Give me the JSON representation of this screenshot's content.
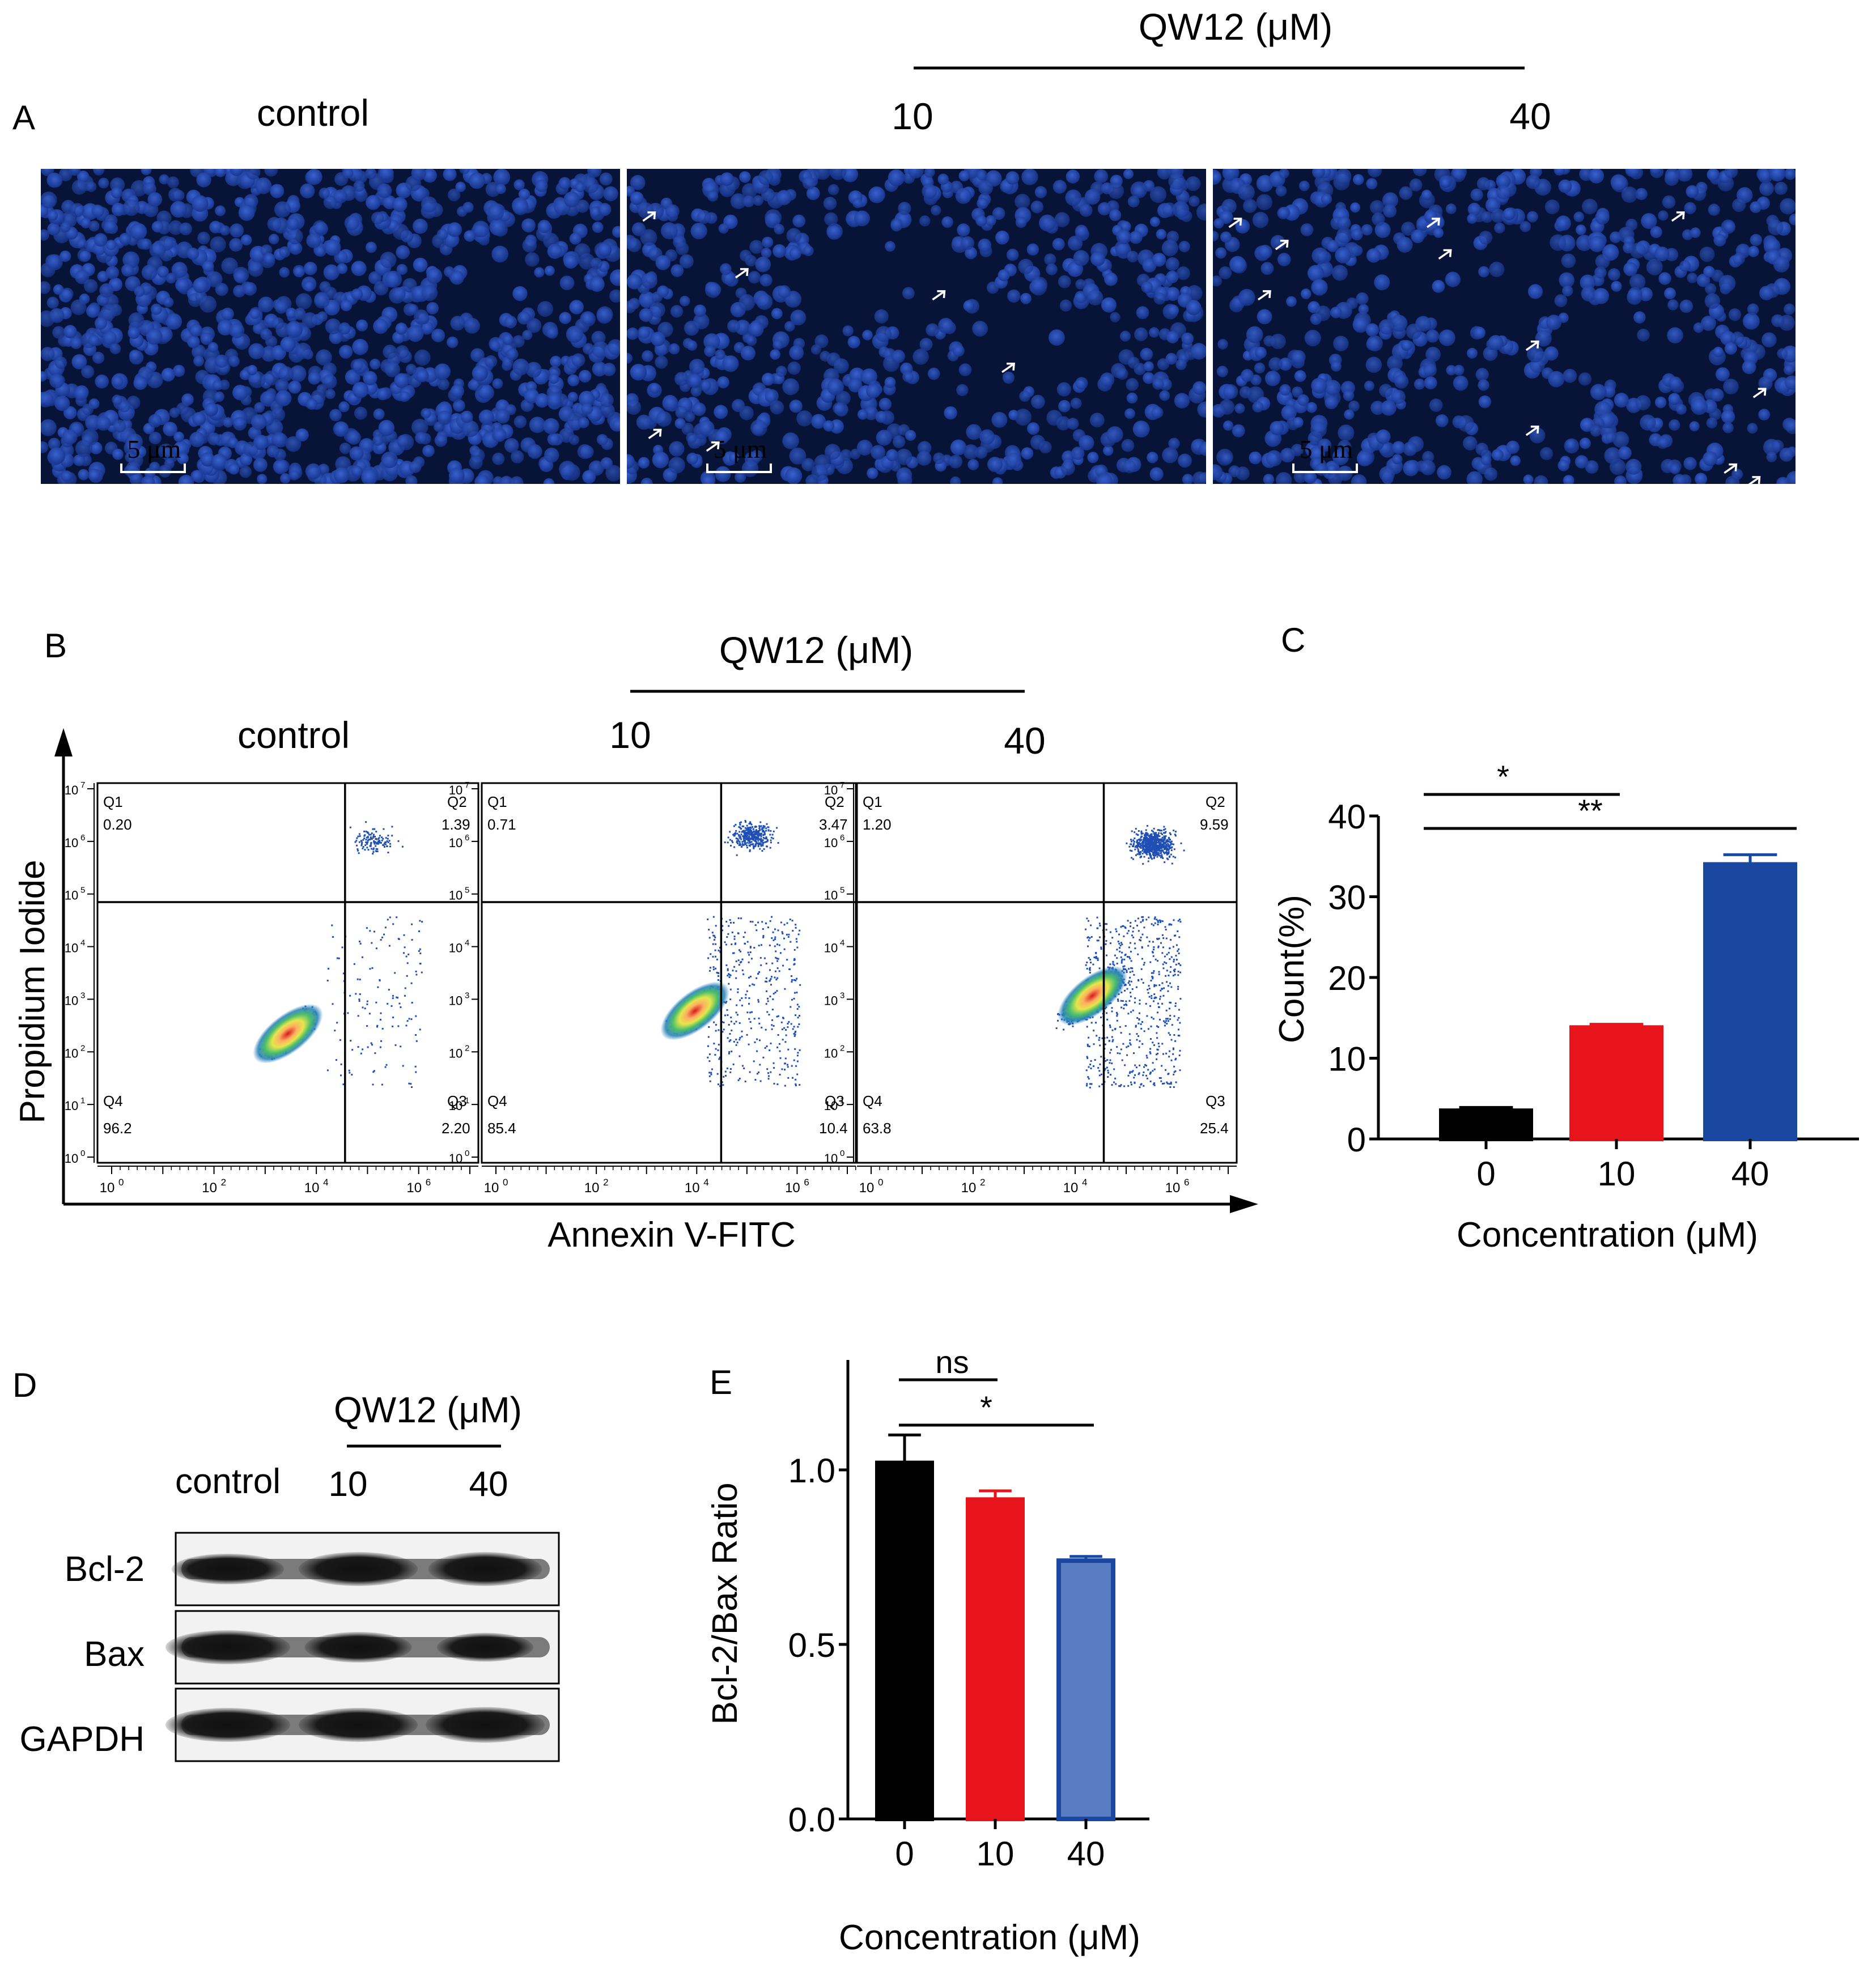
{
  "panel_letters": {
    "a": "A",
    "b": "B",
    "c": "C",
    "d": "D",
    "e": "E"
  },
  "panel_a": {
    "treatment_label": "QW12 (μM)",
    "titles": [
      "control",
      "10",
      "40"
    ],
    "scale_bar": "5 μm",
    "background_color": "#071438",
    "nucleus_color": "#1d3fa6"
  },
  "panel_b": {
    "treatment_label": "QW12 (μM)",
    "titles": [
      "control",
      "10",
      "40"
    ],
    "xlabel": "Annexin V-FITC",
    "ylabel": "Propidium Iodide",
    "x_ticks": [
      "10",
      "10",
      "10",
      "10"
    ],
    "x_tick_exps": [
      "0",
      "2",
      "4",
      "6"
    ],
    "y_ticks": [
      "10",
      "10",
      "10",
      "10",
      "10",
      "10",
      "10",
      "10"
    ],
    "y_tick_exps": [
      "0",
      "1",
      "2",
      "3",
      "4",
      "5",
      "6",
      "7"
    ],
    "plots": [
      {
        "quadrants": [
          {
            "name": "Q1",
            "value": "0.20"
          },
          {
            "name": "Q2",
            "value": "1.39"
          },
          {
            "name": "Q3",
            "value": "2.20"
          },
          {
            "name": "Q4",
            "value": "96.2"
          }
        ]
      },
      {
        "quadrants": [
          {
            "name": "Q1",
            "value": "0.71"
          },
          {
            "name": "Q2",
            "value": "3.47"
          },
          {
            "name": "Q3",
            "value": "10.4"
          },
          {
            "name": "Q4",
            "value": "85.4"
          }
        ]
      },
      {
        "quadrants": [
          {
            "name": "Q1",
            "value": "1.20"
          },
          {
            "name": "Q2",
            "value": "9.59"
          },
          {
            "name": "Q3",
            "value": "25.4"
          },
          {
            "name": "Q4",
            "value": "63.8"
          }
        ]
      }
    ]
  },
  "panel_d": {
    "treatment_label": "QW12 (μM)",
    "lanes": [
      "control",
      "10",
      "40"
    ],
    "rows": [
      "Bcl-2",
      "Bax",
      "GAPDH"
    ]
  },
  "chart_data": [
    {
      "type": "bar",
      "panel": "C",
      "categories": [
        "0",
        "10",
        "40"
      ],
      "values": [
        3.5,
        13.8,
        34.0
      ],
      "errors": [
        0.4,
        0.4,
        1.2
      ],
      "colors": [
        "#000000",
        "#e8141c",
        "#1a47a0"
      ],
      "xlabel": "Concentration (μM)",
      "ylabel": "Count(%)",
      "ylim": [
        0,
        40
      ],
      "yticks": [
        "0",
        "10",
        "20",
        "30",
        "40"
      ],
      "significance": [
        {
          "from": "0",
          "to": "10",
          "label": "*"
        },
        {
          "from": "0",
          "to": "40",
          "label": "**"
        }
      ],
      "grid": false
    },
    {
      "type": "bar",
      "panel": "E",
      "categories": [
        "0",
        "10",
        "40"
      ],
      "values": [
        1.02,
        0.915,
        0.74
      ],
      "errors": [
        0.08,
        0.025,
        0.012
      ],
      "colors": [
        "#000000",
        "#e8141c",
        "#5a7cc2"
      ],
      "edge_color": "#1a47a0",
      "xlabel": "Concentration (μM)",
      "ylabel": "Bcl-2/Bax Ratio",
      "ylim": [
        0,
        1.25
      ],
      "yticks": [
        "0.0",
        "0.5",
        "1.0"
      ],
      "significance": [
        {
          "from": "0",
          "to": "10",
          "label": "ns"
        },
        {
          "from": "0",
          "to": "40",
          "label": "*"
        }
      ],
      "grid": false
    }
  ]
}
